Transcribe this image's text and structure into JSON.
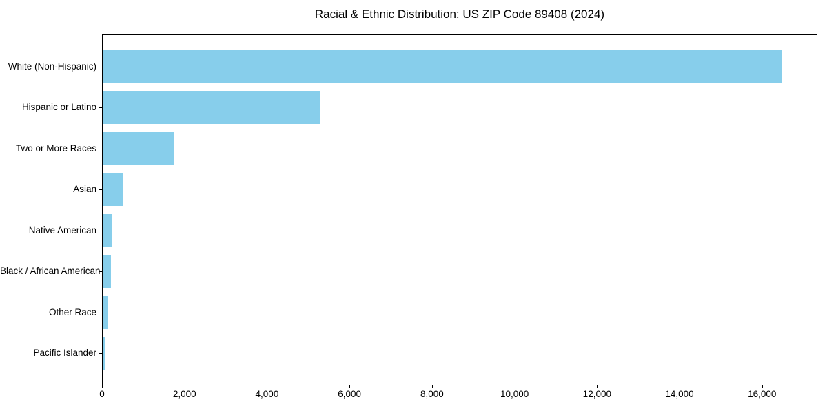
{
  "figure": {
    "background": "#ffffff",
    "text_color": "#000000",
    "spine_color": "#000000"
  },
  "chart_data": {
    "type": "bar",
    "orientation": "horizontal",
    "title": "Racial & Ethnic Distribution: US ZIP Code 89408 (2024)",
    "categories": [
      "White (Non-Hispanic)",
      "Hispanic or Latino",
      "Two or More Races",
      "Asian",
      "Native American",
      "Black / African American",
      "Other Race",
      "Pacific Islander"
    ],
    "values": [
      16500,
      5270,
      1730,
      480,
      220,
      200,
      130,
      60
    ],
    "bar_color": "#87CEEB",
    "xlabel": "",
    "ylabel": "",
    "xlim": [
      0,
      17340
    ],
    "xticks": [
      0,
      2000,
      4000,
      6000,
      8000,
      10000,
      12000,
      14000,
      16000
    ],
    "xtick_labels": [
      "0",
      "2,000",
      "4,000",
      "6,000",
      "8,000",
      "10,000",
      "12,000",
      "14,000",
      "16,000"
    ],
    "grid": false,
    "legend": "none"
  }
}
